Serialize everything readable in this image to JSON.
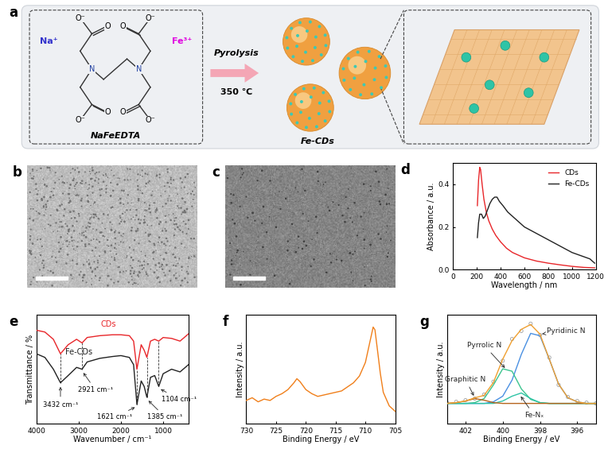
{
  "schematic": {
    "title": "a",
    "precursor": "NaFeEDTA",
    "atoms": {
      "N": "N",
      "O": "O",
      "O_minus": "O⁻"
    },
    "ions": [
      {
        "text": "Na⁺",
        "color": "#3333cc"
      },
      {
        "text": "Fe³⁺",
        "color": "#e000e0"
      }
    ],
    "process": "Pyrolysis",
    "temperature": "350 ℃",
    "product": "Fe-CDs"
  },
  "images": [
    {
      "title": "b"
    },
    {
      "title": "c"
    }
  ],
  "chart_data": [
    {
      "type": "line",
      "title": "d",
      "x_label": "Wavelength / nm",
      "y_label": "Absorbance / a.u.",
      "xlim": [
        0,
        1200
      ],
      "xticks": [
        0,
        200,
        400,
        600,
        800,
        1000,
        1200
      ],
      "ylim": [
        0,
        0.5
      ],
      "yticks": [
        0.0,
        0.2,
        0.4
      ],
      "legend": "upper right",
      "series": [
        {
          "name": "CDs",
          "color": "#e8262a",
          "x": [
            205,
            215,
            225,
            232,
            245,
            260,
            280,
            300,
            330,
            360,
            400,
            450,
            500,
            600,
            700,
            800,
            900,
            1000,
            1100,
            1190
          ],
          "values": [
            0.3,
            0.42,
            0.48,
            0.47,
            0.4,
            0.33,
            0.27,
            0.23,
            0.19,
            0.16,
            0.13,
            0.1,
            0.08,
            0.055,
            0.04,
            0.03,
            0.022,
            0.015,
            0.01,
            0.008
          ]
        },
        {
          "name": "Fe-CDs",
          "color": "#222222",
          "x": [
            205,
            215,
            225,
            240,
            255,
            270,
            290,
            310,
            330,
            350,
            370,
            390,
            420,
            460,
            500,
            600,
            700,
            800,
            900,
            1000,
            1100,
            1150,
            1190
          ],
          "values": [
            0.15,
            0.22,
            0.26,
            0.26,
            0.24,
            0.25,
            0.28,
            0.31,
            0.33,
            0.34,
            0.34,
            0.32,
            0.3,
            0.27,
            0.25,
            0.2,
            0.17,
            0.14,
            0.11,
            0.08,
            0.06,
            0.05,
            0.03
          ]
        }
      ]
    },
    {
      "type": "line",
      "title": "e",
      "x_label": "Wavenumber / cm⁻¹",
      "y_label": "Transmittance / %",
      "xlim": [
        4000,
        400
      ],
      "xticks": [
        4000,
        3000,
        2000,
        1000
      ],
      "ylim": [
        -0.15,
        1.05
      ],
      "tick_labels": "x",
      "series": [
        {
          "name": "CDs",
          "color": "#e8262a",
          "x": [
            4000,
            3800,
            3600,
            3432,
            3250,
            3050,
            2921,
            2800,
            2500,
            2200,
            2000,
            1800,
            1700,
            1621,
            1520,
            1450,
            1385,
            1300,
            1200,
            1104,
            1000,
            800,
            600,
            400
          ],
          "values": [
            0.88,
            0.86,
            0.78,
            0.62,
            0.72,
            0.78,
            0.74,
            0.8,
            0.82,
            0.83,
            0.83,
            0.82,
            0.76,
            0.45,
            0.72,
            0.66,
            0.58,
            0.76,
            0.78,
            0.76,
            0.8,
            0.79,
            0.76,
            0.84
          ]
        },
        {
          "name": "Fe-CDs",
          "color": "#222222",
          "x": [
            4000,
            3800,
            3600,
            3432,
            3250,
            3050,
            2921,
            2800,
            2500,
            2200,
            2000,
            1800,
            1700,
            1621,
            1520,
            1450,
            1385,
            1300,
            1200,
            1104,
            1000,
            800,
            600,
            400
          ],
          "values": [
            0.62,
            0.58,
            0.45,
            0.3,
            0.38,
            0.47,
            0.45,
            0.53,
            0.57,
            0.59,
            0.6,
            0.58,
            0.5,
            0.06,
            0.32,
            0.26,
            0.14,
            0.36,
            0.38,
            0.26,
            0.4,
            0.45,
            0.42,
            0.5
          ]
        }
      ],
      "annotations": [
        {
          "text": "3432 cm⁻¹",
          "x": 3432
        },
        {
          "text": "2921 cm⁻¹",
          "x": 2921
        },
        {
          "text": "1621 cm⁻¹",
          "x": 1621
        },
        {
          "text": "1385 cm⁻¹",
          "x": 1385
        },
        {
          "text": "1104 cm⁻¹",
          "x": 1104
        }
      ]
    },
    {
      "type": "line",
      "title": "f",
      "x_label": "Binding Energy / eV",
      "y_label": "Intensity / a.u.",
      "xlim": [
        730,
        705
      ],
      "xticks": [
        730,
        725,
        720,
        715,
        710,
        705
      ],
      "ylim": [
        0.25,
        1.05
      ],
      "tick_labels": "x",
      "series": [
        {
          "color": "#f07f1a",
          "x": [
            730,
            729,
            728,
            727,
            726,
            725,
            724,
            723,
            722,
            721.5,
            721,
            720,
            719,
            718,
            717,
            716,
            715,
            714,
            713,
            712,
            711,
            710,
            709.5,
            709,
            708.7,
            708.4,
            708,
            707.5,
            707,
            706,
            705
          ],
          "values": [
            0.42,
            0.44,
            0.41,
            0.43,
            0.42,
            0.45,
            0.47,
            0.5,
            0.55,
            0.58,
            0.56,
            0.5,
            0.47,
            0.45,
            0.46,
            0.47,
            0.48,
            0.49,
            0.52,
            0.55,
            0.6,
            0.7,
            0.8,
            0.9,
            0.96,
            0.94,
            0.8,
            0.62,
            0.48,
            0.38,
            0.34
          ]
        }
      ]
    },
    {
      "type": "line",
      "title": "g",
      "x_label": "Binding Energy / eV",
      "y_label": "Intensity / a.u.",
      "xlim": [
        403,
        395
      ],
      "xticks": [
        402,
        400,
        398,
        396
      ],
      "ylim": [
        -0.25,
        1.1
      ],
      "tick_labels": "x",
      "x": [
        403,
        402.5,
        402,
        401.5,
        401,
        400.5,
        400,
        399.5,
        399,
        398.5,
        398,
        397.5,
        397,
        396.5,
        396,
        395.5,
        395
      ],
      "series": [
        {
          "type": "scatter",
          "marker": "o",
          "color": "#a0a0a0",
          "values": [
            0.01,
            0.02,
            0.04,
            0.06,
            0.11,
            0.27,
            0.53,
            0.8,
            0.9,
            0.99,
            0.85,
            0.57,
            0.23,
            0.08,
            0.03,
            0.01,
            0.0
          ]
        },
        {
          "name": "Pyridinic N",
          "color": "#4a90e2",
          "values": [
            0,
            0,
            0,
            0,
            0,
            0.02,
            0.09,
            0.29,
            0.61,
            0.87,
            0.84,
            0.55,
            0.24,
            0.07,
            0.02,
            0,
            0
          ]
        },
        {
          "name": "Pyrrolic N",
          "color": "#3cc48f",
          "values": [
            0,
            0,
            0,
            0.01,
            0.06,
            0.23,
            0.43,
            0.4,
            0.18,
            0.05,
            0.01,
            0,
            0,
            0,
            0,
            0,
            0
          ]
        },
        {
          "name": "Fe-Nₓ",
          "color": "#2ec4a6",
          "values": [
            0,
            0,
            0,
            0,
            0,
            0,
            0.03,
            0.09,
            0.13,
            0.06,
            0.01,
            0,
            0,
            0,
            0,
            0,
            0
          ]
        },
        {
          "name": "Graphitic N",
          "color": "#b5651d",
          "values": [
            0,
            0.01,
            0.03,
            0.06,
            0.04,
            0.01,
            0,
            0,
            0,
            0,
            0,
            0,
            0,
            0,
            0,
            0,
            0
          ]
        },
        {
          "color": "#f0a030",
          "values": [
            0,
            0.01,
            0.03,
            0.07,
            0.1,
            0.26,
            0.55,
            0.78,
            0.92,
            0.98,
            0.86,
            0.55,
            0.24,
            0.07,
            0.02,
            0,
            0
          ]
        }
      ]
    }
  ]
}
